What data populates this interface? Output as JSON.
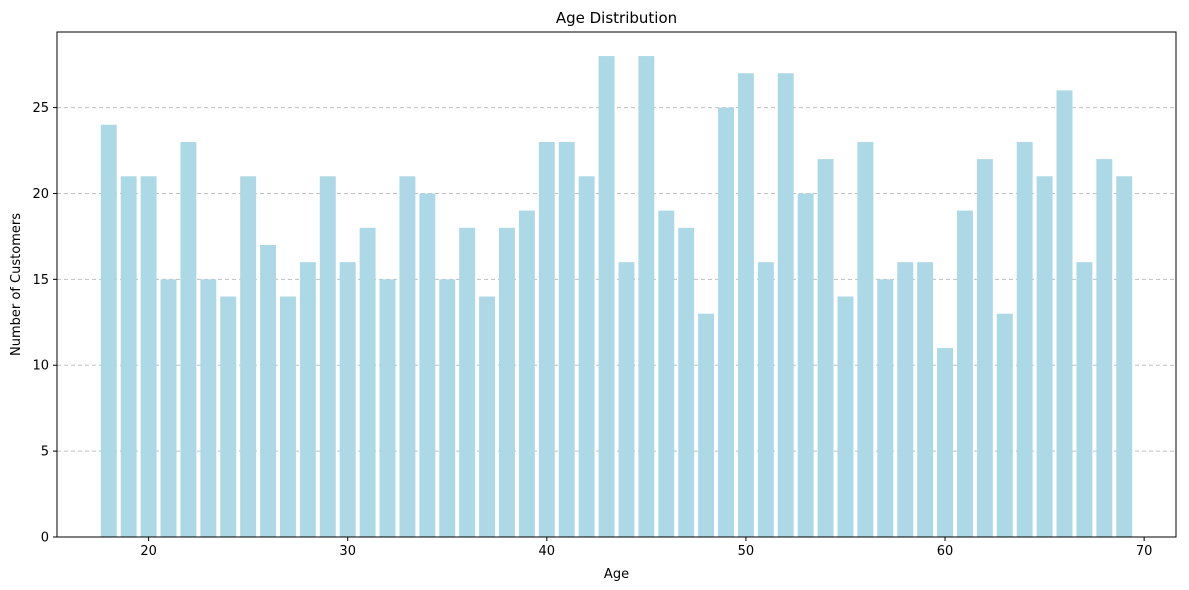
{
  "chart_data": {
    "type": "bar",
    "title": "Age Distribution",
    "xlabel": "Age",
    "ylabel": "Number of Customers",
    "x": [
      18,
      19,
      20,
      21,
      22,
      23,
      24,
      25,
      26,
      27,
      28,
      29,
      30,
      31,
      32,
      33,
      34,
      35,
      36,
      37,
      38,
      39,
      40,
      41,
      42,
      43,
      44,
      45,
      46,
      47,
      48,
      49,
      50,
      51,
      52,
      53,
      54,
      55,
      56,
      57,
      58,
      59,
      60,
      61,
      62,
      63,
      64,
      65,
      66,
      67,
      68,
      69
    ],
    "values": [
      24,
      21,
      21,
      15,
      23,
      15,
      14,
      21,
      17,
      14,
      16,
      21,
      16,
      18,
      15,
      21,
      20,
      15,
      18,
      14,
      18,
      19,
      23,
      23,
      21,
      28,
      16,
      28,
      19,
      18,
      13,
      25,
      27,
      16,
      27,
      20,
      22,
      14,
      23,
      15,
      16,
      16,
      11,
      19,
      22,
      13,
      23,
      21,
      26,
      16,
      22,
      21
    ],
    "xlim": [
      15.4,
      71.6
    ],
    "ylim": [
      0,
      29.4
    ],
    "xticks": [
      20,
      30,
      40,
      50,
      60,
      70
    ],
    "yticks": [
      0,
      5,
      10,
      15,
      20,
      25
    ],
    "bar_color": "#add8e6",
    "grid": "y-dashed",
    "grid_color": "#c0c0c0"
  }
}
